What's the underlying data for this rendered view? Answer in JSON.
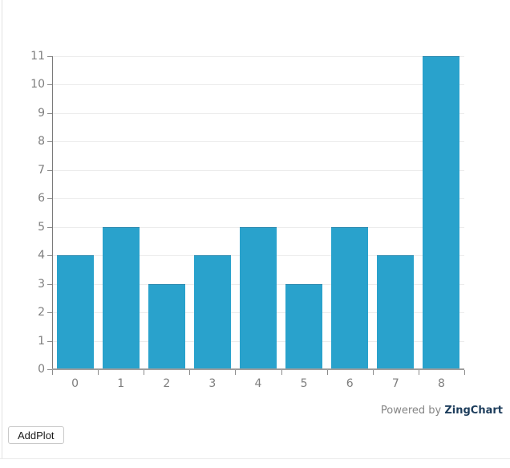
{
  "chart_data": {
    "type": "bar",
    "categories": [
      "0",
      "1",
      "2",
      "3",
      "4",
      "5",
      "6",
      "7",
      "8"
    ],
    "values": [
      4,
      5,
      3,
      4,
      5,
      3,
      5,
      4,
      11
    ],
    "title": "",
    "xlabel": "",
    "ylabel": "",
    "ylim": [
      0,
      11
    ],
    "ytick_step": 1,
    "yticks": [
      0,
      1,
      2,
      3,
      4,
      5,
      6,
      7,
      8,
      9,
      10,
      11
    ],
    "grid": true,
    "legend": false,
    "bar_color": "#29A2CC",
    "bar_top_edge_color": "#1E84AC",
    "gridline_color": "#ececec",
    "axis_label_color": "#7e7e7e"
  },
  "footer": {
    "powered_by_prefix": "Powered by ",
    "brand": "ZingChart",
    "brand_color": "#1D3D5C",
    "prefix_color": "#848484"
  },
  "controls": {
    "add_plot_label": "AddPlot"
  }
}
